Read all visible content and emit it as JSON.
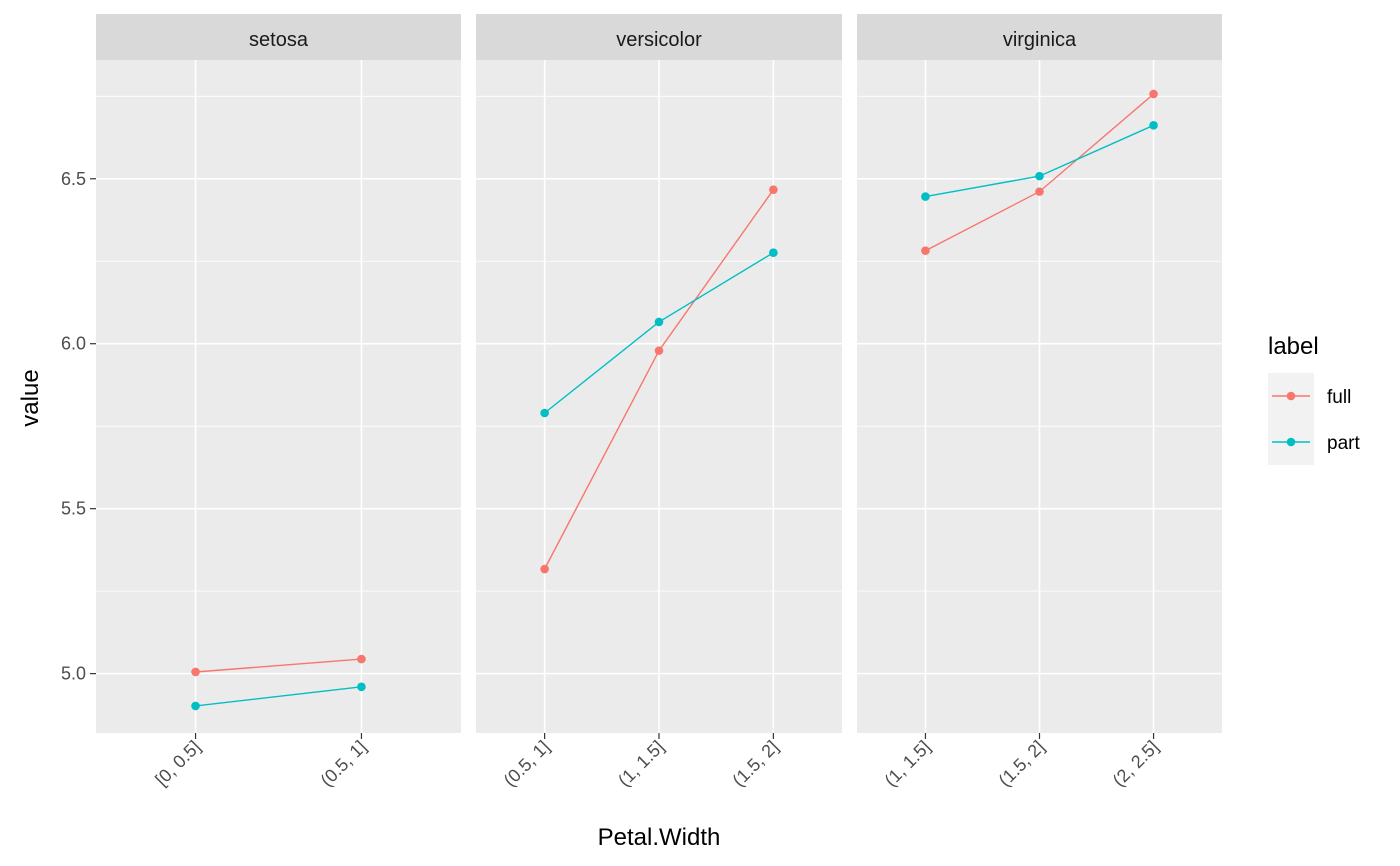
{
  "chart_data": {
    "type": "line",
    "xlabel": "Petal.Width",
    "ylabel": "value",
    "ylim": [
      4.82,
      6.86
    ],
    "yticks": [
      "5.0",
      "5.5",
      "6.0",
      "6.5"
    ],
    "ytick_values": [
      5.0,
      5.5,
      6.0,
      6.5
    ],
    "grid": true,
    "legend": {
      "title": "label",
      "position": "right",
      "entries": [
        "full",
        "part"
      ]
    },
    "colors": {
      "full": "#F8766D",
      "part": "#00BFC4"
    },
    "facets": [
      {
        "name": "setosa",
        "categories": [
          "[0, 0.5]",
          "(0.5, 1]"
        ],
        "series": [
          {
            "name": "full",
            "values": [
              5.005,
              5.044
            ]
          },
          {
            "name": "part",
            "values": [
              4.902,
              4.96
            ]
          }
        ]
      },
      {
        "name": "versicolor",
        "categories": [
          "(0.5, 1]",
          "(1, 1.5]",
          "(1.5, 2]"
        ],
        "series": [
          {
            "name": "full",
            "values": [
              5.317,
              5.979,
              6.467
            ]
          },
          {
            "name": "part",
            "values": [
              5.79,
              6.066,
              6.276
            ]
          }
        ]
      },
      {
        "name": "virginica",
        "categories": [
          "(1, 1.5]",
          "(1.5, 2]",
          "(2, 2.5]"
        ],
        "series": [
          {
            "name": "full",
            "values": [
              6.282,
              6.461,
              6.757
            ]
          },
          {
            "name": "part",
            "values": [
              6.446,
              6.508,
              6.662
            ]
          }
        ]
      }
    ]
  }
}
